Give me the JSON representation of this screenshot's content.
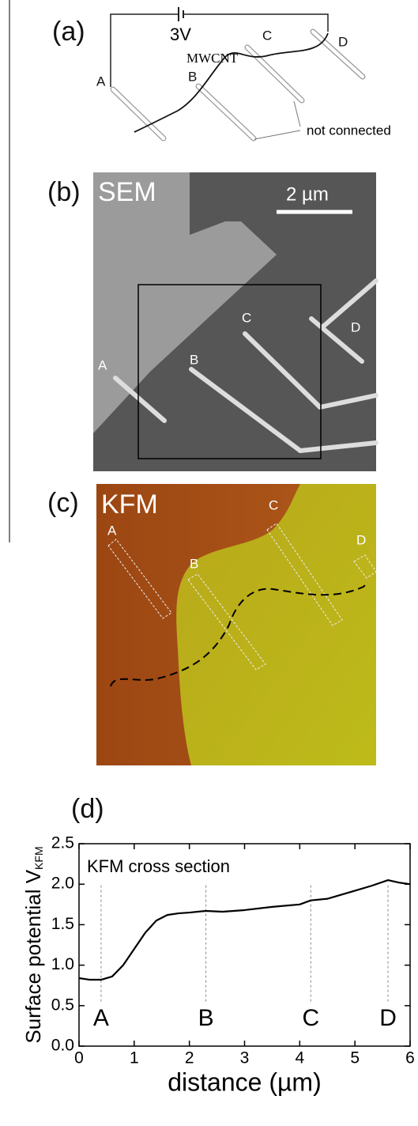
{
  "panels": {
    "a": {
      "label": "(a)",
      "voltage": "3V",
      "tube": "MWCNT",
      "note": "not connected",
      "electrodes": [
        "A",
        "B",
        "C",
        "D"
      ]
    },
    "b": {
      "label": "(b)",
      "title": "SEM",
      "scale": "2 µm",
      "electrodes": [
        "A",
        "B",
        "C",
        "D"
      ]
    },
    "c": {
      "label": "(c)",
      "title": "KFM",
      "electrodes": [
        "A",
        "B",
        "C",
        "D"
      ]
    },
    "d": {
      "label": "(d)"
    }
  },
  "chart_data": {
    "type": "line",
    "annotation": "KFM cross section",
    "y_label": "Surface potential V",
    "y_label_sub": "KFM",
    "x_label": "distance (µm)",
    "x": [
      0,
      0.2,
      0.4,
      0.6,
      0.8,
      1.0,
      1.2,
      1.4,
      1.6,
      1.8,
      2.0,
      2.3,
      2.6,
      3.0,
      3.5,
      4.0,
      4.2,
      4.5,
      5.0,
      5.3,
      5.6,
      5.8,
      6.0
    ],
    "series": [
      {
        "color": "#000000",
        "values": [
          0.84,
          0.82,
          0.82,
          0.86,
          1.0,
          1.2,
          1.4,
          1.55,
          1.62,
          1.64,
          1.65,
          1.67,
          1.66,
          1.68,
          1.72,
          1.75,
          1.8,
          1.82,
          1.92,
          1.98,
          2.05,
          2.02,
          2.0
        ]
      }
    ],
    "markers": [
      {
        "x": 0.4,
        "label": "A"
      },
      {
        "x": 2.3,
        "label": "B"
      },
      {
        "x": 4.2,
        "label": "C"
      },
      {
        "x": 5.6,
        "label": "D"
      }
    ],
    "xlim": [
      0,
      6
    ],
    "xticks": [
      0,
      1,
      2,
      3,
      4,
      5,
      6
    ],
    "ylim": [
      0,
      2.5
    ],
    "yticks": [
      {
        "value": 0,
        "label": "0.0"
      },
      0.5,
      {
        "value": 1,
        "label": "1.0"
      },
      1.5,
      {
        "value": 2,
        "label": "2.0"
      },
      2.5
    ]
  }
}
